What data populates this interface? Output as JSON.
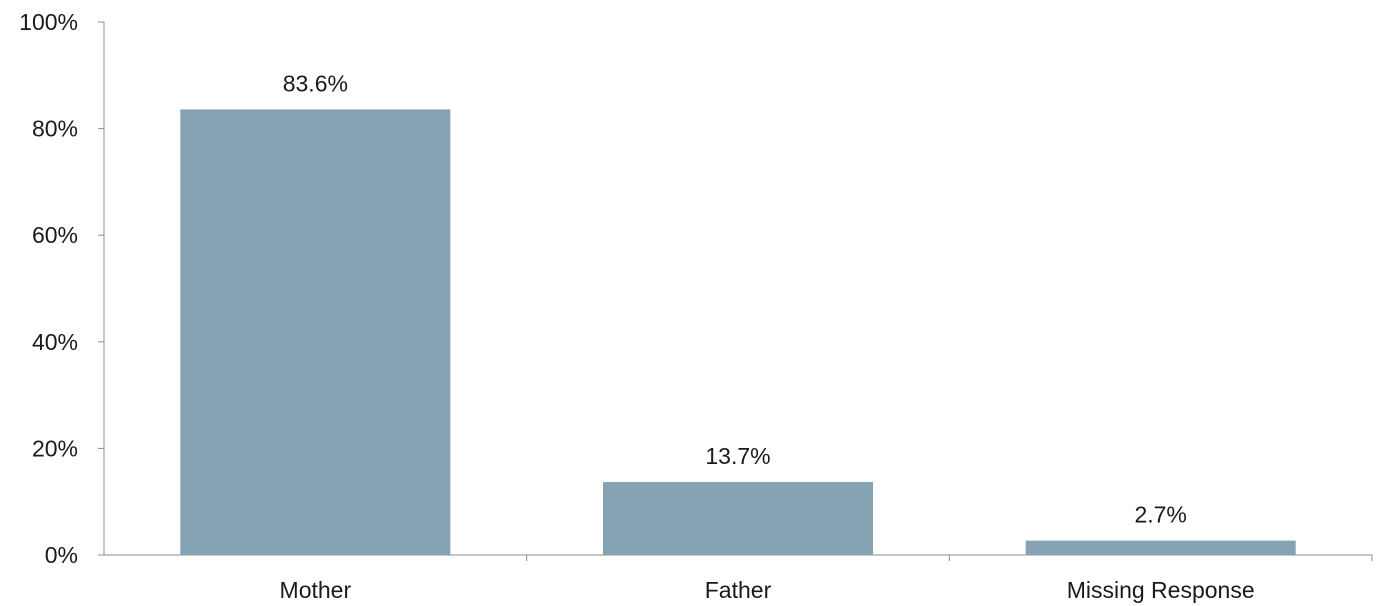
{
  "chart_data": {
    "type": "bar",
    "title": "",
    "xlabel": "",
    "ylabel": "",
    "categories": [
      "Mother",
      "Father",
      "Missing Response"
    ],
    "values": [
      83.6,
      13.7,
      2.7
    ],
    "value_labels": [
      "83.6%",
      "13.7%",
      "2.7%"
    ],
    "ylim": [
      0,
      100
    ],
    "y_ticks": [
      0,
      20,
      40,
      60,
      80,
      100
    ],
    "y_tick_labels": [
      "0%",
      "20%",
      "40%",
      "60%",
      "80%",
      "100%"
    ],
    "grid": false,
    "legend": "none",
    "bar_color": "#86a3b3"
  }
}
